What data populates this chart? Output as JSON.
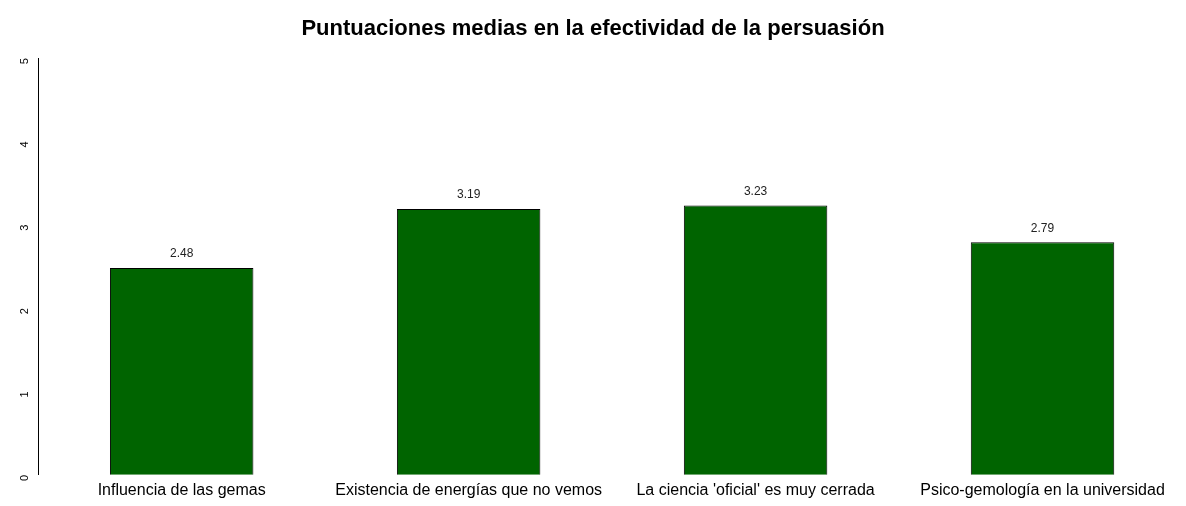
{
  "chart_data": {
    "type": "bar",
    "title": "Puntuaciones medias en la efectividad de la persuasión",
    "categories": [
      "Influencia de las gemas",
      "Existencia de energías que no vemos",
      "La ciencia 'oficial' es muy cerrada",
      "Psico-gemología en la universidad"
    ],
    "values": [
      2.48,
      3.19,
      3.23,
      2.79
    ],
    "color": "#006400",
    "ylim": [
      0,
      5
    ],
    "yticks": [
      0,
      1,
      2,
      3,
      4,
      5
    ],
    "grid": false,
    "legend": false,
    "data_labels": true
  }
}
